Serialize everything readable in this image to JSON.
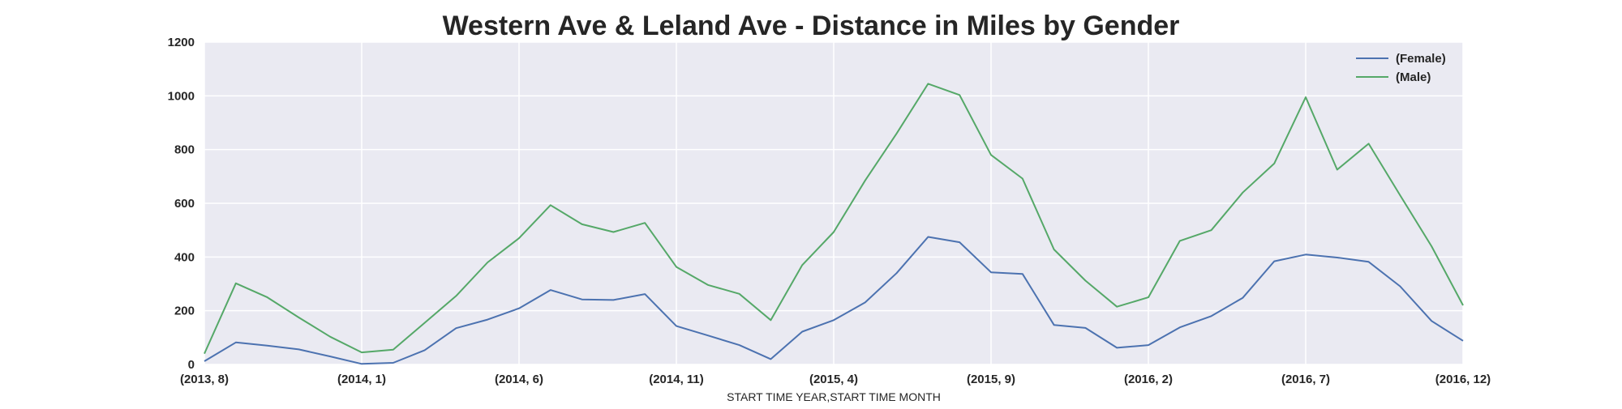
{
  "chart_data": {
    "type": "line",
    "title": "Western Ave & Leland Ave - Distance in Miles by Gender",
    "xlabel": "START TIME YEAR,START TIME MONTH",
    "ylabel": "",
    "ylim": [
      0,
      1200
    ],
    "yticks": [
      0,
      200,
      400,
      600,
      800,
      1000,
      1200
    ],
    "grid": true,
    "legend_position": "top-right",
    "x": [
      "(2013, 8)",
      "(2013, 9)",
      "(2013, 10)",
      "(2013, 11)",
      "(2013, 12)",
      "(2014, 1)",
      "(2014, 2)",
      "(2014, 3)",
      "(2014, 4)",
      "(2014, 5)",
      "(2014, 6)",
      "(2014, 7)",
      "(2014, 8)",
      "(2014, 9)",
      "(2014, 10)",
      "(2014, 11)",
      "(2014, 12)",
      "(2015, 1)",
      "(2015, 2)",
      "(2015, 3)",
      "(2015, 4)",
      "(2015, 5)",
      "(2015, 6)",
      "(2015, 7)",
      "(2015, 8)",
      "(2015, 9)",
      "(2015, 10)",
      "(2015, 11)",
      "(2015, 12)",
      "(2016, 1)",
      "(2016, 2)",
      "(2016, 3)",
      "(2016, 4)",
      "(2016, 5)",
      "(2016, 6)",
      "(2016, 7)",
      "(2016, 8)",
      "(2016, 9)",
      "(2016, 10)",
      "(2016, 11)",
      "(2016, 12)"
    ],
    "xtick_labels": [
      "(2013, 8)",
      "(2014, 1)",
      "(2014, 6)",
      "(2014, 11)",
      "(2015, 4)",
      "(2015, 9)",
      "(2016, 2)",
      "(2016, 7)",
      "(2016, 12)"
    ],
    "series": [
      {
        "name": "(Female)",
        "color": "#4c72b0",
        "values": [
          12,
          82,
          70,
          56,
          30,
          2,
          6,
          53,
          135,
          167,
          209,
          277,
          242,
          240,
          262,
          143,
          108,
          72,
          20,
          122,
          165,
          231,
          340,
          475,
          455,
          343,
          337,
          147,
          136,
          62,
          72,
          138,
          180,
          248,
          384,
          409,
          398,
          382,
          291,
          162,
          88
        ]
      },
      {
        "name": "(Male)",
        "color": "#55a868",
        "values": [
          40,
          302,
          250,
          175,
          103,
          45,
          55,
          155,
          255,
          380,
          470,
          593,
          522,
          493,
          527,
          363,
          296,
          263,
          165,
          370,
          493,
          685,
          860,
          1045,
          1003,
          780,
          692,
          428,
          312,
          215,
          250,
          460,
          500,
          640,
          748,
          995,
          725,
          822,
          630,
          440,
          220
        ]
      }
    ]
  }
}
